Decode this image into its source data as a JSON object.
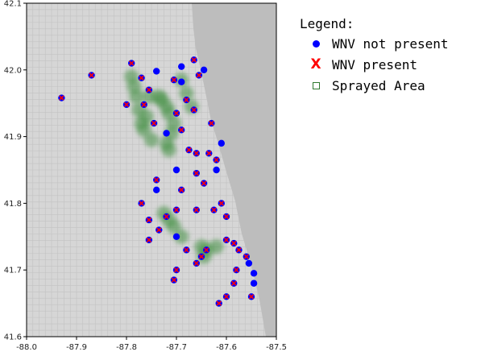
{
  "chart_data": {
    "type": "scatter",
    "title": "",
    "xlabel": "",
    "ylabel": "",
    "xlim": [
      -88.0,
      -87.5
    ],
    "ylim": [
      41.6,
      42.1
    ],
    "x_ticks": [
      "-88.0",
      "-87.9",
      "-87.8",
      "-87.7",
      "-87.6",
      "-87.5"
    ],
    "y_ticks": [
      "41.6",
      "41.7",
      "41.8",
      "41.9",
      "42.0",
      "42.1"
    ],
    "background": "Chicago street map",
    "legend": {
      "title": "Legend:",
      "placement": "outside-right",
      "entries": [
        {
          "label": "WNV not present",
          "marker": "blue-dot"
        },
        {
          "label": "WNV present",
          "marker": "red-x"
        },
        {
          "label": "Sprayed Area",
          "marker": "green-square"
        }
      ]
    },
    "series": [
      {
        "name": "WNV not present",
        "color": "#0000ff",
        "points": [
          [
            -87.93,
            41.958
          ],
          [
            -87.87,
            41.992
          ],
          [
            -87.8,
            41.948
          ],
          [
            -87.79,
            42.01
          ],
          [
            -87.77,
            41.988
          ],
          [
            -87.755,
            41.97
          ],
          [
            -87.74,
            41.998
          ],
          [
            -87.705,
            41.985
          ],
          [
            -87.69,
            41.982
          ],
          [
            -87.68,
            41.955
          ],
          [
            -87.665,
            41.94
          ],
          [
            -87.7,
            41.935
          ],
          [
            -87.72,
            41.905
          ],
          [
            -87.745,
            41.92
          ],
          [
            -87.765,
            41.948
          ],
          [
            -87.69,
            42.005
          ],
          [
            -87.665,
            42.015
          ],
          [
            -87.655,
            41.992
          ],
          [
            -87.645,
            42.0
          ],
          [
            -87.69,
            41.91
          ],
          [
            -87.675,
            41.88
          ],
          [
            -87.66,
            41.875
          ],
          [
            -87.635,
            41.875
          ],
          [
            -87.63,
            41.92
          ],
          [
            -87.61,
            41.89
          ],
          [
            -87.62,
            41.865
          ],
          [
            -87.7,
            41.85
          ],
          [
            -87.69,
            41.82
          ],
          [
            -87.66,
            41.845
          ],
          [
            -87.645,
            41.83
          ],
          [
            -87.62,
            41.85
          ],
          [
            -87.61,
            41.8
          ],
          [
            -87.6,
            41.78
          ],
          [
            -87.625,
            41.79
          ],
          [
            -87.66,
            41.79
          ],
          [
            -87.7,
            41.79
          ],
          [
            -87.72,
            41.78
          ],
          [
            -87.755,
            41.775
          ],
          [
            -87.735,
            41.76
          ],
          [
            -87.7,
            41.75
          ],
          [
            -87.68,
            41.73
          ],
          [
            -87.65,
            41.72
          ],
          [
            -87.64,
            41.73
          ],
          [
            -87.6,
            41.745
          ],
          [
            -87.585,
            41.74
          ],
          [
            -87.575,
            41.73
          ],
          [
            -87.56,
            41.72
          ],
          [
            -87.555,
            41.71
          ],
          [
            -87.545,
            41.695
          ],
          [
            -87.58,
            41.7
          ],
          [
            -87.585,
            41.68
          ],
          [
            -87.55,
            41.66
          ],
          [
            -87.545,
            41.68
          ],
          [
            -87.6,
            41.66
          ],
          [
            -87.615,
            41.65
          ],
          [
            -87.66,
            41.71
          ],
          [
            -87.7,
            41.7
          ],
          [
            -87.705,
            41.685
          ],
          [
            -87.755,
            41.745
          ],
          [
            -87.77,
            41.8
          ],
          [
            -87.74,
            41.82
          ],
          [
            -87.74,
            41.835
          ]
        ]
      },
      {
        "name": "WNV present",
        "color": "#ff0000",
        "points": [
          [
            -87.93,
            41.958
          ],
          [
            -87.87,
            41.992
          ],
          [
            -87.8,
            41.948
          ],
          [
            -87.79,
            42.01
          ],
          [
            -87.77,
            41.988
          ],
          [
            -87.755,
            41.97
          ],
          [
            -87.705,
            41.985
          ],
          [
            -87.68,
            41.955
          ],
          [
            -87.665,
            41.94
          ],
          [
            -87.7,
            41.935
          ],
          [
            -87.745,
            41.92
          ],
          [
            -87.765,
            41.948
          ],
          [
            -87.665,
            42.015
          ],
          [
            -87.655,
            41.992
          ],
          [
            -87.69,
            41.91
          ],
          [
            -87.675,
            41.88
          ],
          [
            -87.66,
            41.875
          ],
          [
            -87.635,
            41.875
          ],
          [
            -87.63,
            41.92
          ],
          [
            -87.62,
            41.865
          ],
          [
            -87.69,
            41.82
          ],
          [
            -87.66,
            41.845
          ],
          [
            -87.645,
            41.83
          ],
          [
            -87.61,
            41.8
          ],
          [
            -87.6,
            41.78
          ],
          [
            -87.625,
            41.79
          ],
          [
            -87.66,
            41.79
          ],
          [
            -87.7,
            41.79
          ],
          [
            -87.72,
            41.78
          ],
          [
            -87.755,
            41.775
          ],
          [
            -87.735,
            41.76
          ],
          [
            -87.68,
            41.73
          ],
          [
            -87.65,
            41.72
          ],
          [
            -87.64,
            41.73
          ],
          [
            -87.6,
            41.745
          ],
          [
            -87.585,
            41.74
          ],
          [
            -87.575,
            41.73
          ],
          [
            -87.56,
            41.72
          ],
          [
            -87.58,
            41.7
          ],
          [
            -87.585,
            41.68
          ],
          [
            -87.55,
            41.66
          ],
          [
            -87.6,
            41.66
          ],
          [
            -87.615,
            41.65
          ],
          [
            -87.66,
            41.71
          ],
          [
            -87.7,
            41.7
          ],
          [
            -87.705,
            41.685
          ],
          [
            -87.755,
            41.745
          ],
          [
            -87.77,
            41.8
          ],
          [
            -87.74,
            41.835
          ]
        ]
      },
      {
        "name": "Sprayed Area",
        "color": "#3f8f3f",
        "points": [
          [
            -87.79,
            41.99
          ],
          [
            -87.785,
            41.975
          ],
          [
            -87.78,
            41.96
          ],
          [
            -87.775,
            41.94
          ],
          [
            -87.77,
            41.92
          ],
          [
            -87.765,
            41.91
          ],
          [
            -87.75,
            41.895
          ],
          [
            -87.755,
            41.96
          ],
          [
            -87.73,
            41.955
          ],
          [
            -87.72,
            41.945
          ],
          [
            -87.715,
            41.935
          ],
          [
            -87.705,
            41.92
          ],
          [
            -87.71,
            41.905
          ],
          [
            -87.72,
            41.89
          ],
          [
            -87.715,
            41.88
          ],
          [
            -87.69,
            41.985
          ],
          [
            -87.68,
            41.965
          ],
          [
            -87.67,
            41.945
          ],
          [
            -87.725,
            41.785
          ],
          [
            -87.715,
            41.775
          ],
          [
            -87.705,
            41.765
          ],
          [
            -87.69,
            41.75
          ],
          [
            -87.65,
            41.735
          ],
          [
            -87.64,
            41.73
          ],
          [
            -87.645,
            41.72
          ],
          [
            -87.62,
            41.735
          ],
          [
            -87.735,
            41.96
          ],
          [
            -87.76,
            41.93
          ]
        ]
      }
    ]
  }
}
